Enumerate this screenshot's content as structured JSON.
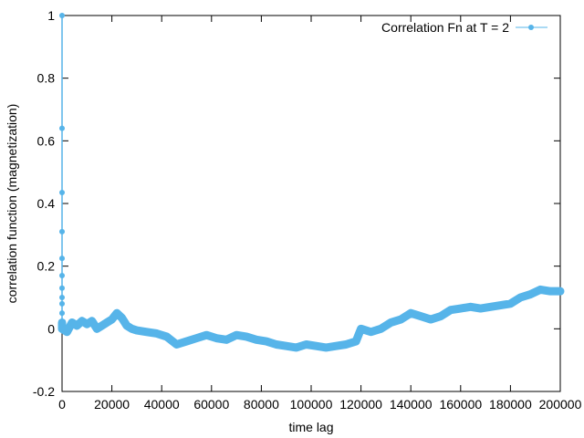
{
  "chart_data": {
    "type": "line",
    "xlabel": "time lag",
    "ylabel": "correlation function (magnetization)",
    "xlim": [
      0,
      200000
    ],
    "ylim": [
      -0.2,
      1
    ],
    "xticks": [
      0,
      20000,
      40000,
      60000,
      80000,
      100000,
      120000,
      140000,
      160000,
      180000,
      200000
    ],
    "yticks": [
      -0.2,
      0,
      0.2,
      0.4,
      0.6,
      0.8,
      1
    ],
    "ytick_labels": [
      "-0.2",
      "0",
      "0.2",
      "0.4",
      "0.6",
      "0.8",
      "1"
    ],
    "grid": false,
    "legend_position": "top-right",
    "series": [
      {
        "name": "Correlation Fn at T = 2",
        "color": "#56b4e9",
        "style": "linespoints",
        "initial_decay": {
          "x": [
            0,
            0,
            0,
            0,
            0,
            0,
            0,
            0,
            0,
            0,
            0
          ],
          "y": [
            1.0,
            0.64,
            0.435,
            0.31,
            0.225,
            0.17,
            0.13,
            0.1,
            0.08,
            0.05,
            0.02
          ]
        },
        "x": [
          0,
          2000,
          4000,
          6000,
          8000,
          10000,
          12000,
          14000,
          16000,
          18000,
          20000,
          22000,
          24000,
          26000,
          28000,
          30000,
          34000,
          38000,
          42000,
          46000,
          50000,
          54000,
          58000,
          62000,
          66000,
          70000,
          74000,
          78000,
          82000,
          86000,
          90000,
          94000,
          98000,
          102000,
          106000,
          110000,
          114000,
          118000,
          120000,
          124000,
          128000,
          132000,
          136000,
          140000,
          144000,
          148000,
          152000,
          156000,
          160000,
          164000,
          168000,
          172000,
          176000,
          180000,
          184000,
          188000,
          192000,
          196000,
          200000
        ],
        "y": [
          0.0,
          -0.01,
          0.02,
          0.01,
          0.025,
          0.015,
          0.025,
          0.0,
          0.01,
          0.02,
          0.03,
          0.05,
          0.035,
          0.01,
          0.0,
          -0.005,
          -0.01,
          -0.015,
          -0.025,
          -0.05,
          -0.04,
          -0.03,
          -0.02,
          -0.03,
          -0.035,
          -0.02,
          -0.025,
          -0.035,
          -0.04,
          -0.05,
          -0.055,
          -0.06,
          -0.05,
          -0.055,
          -0.06,
          -0.055,
          -0.05,
          -0.04,
          0.0,
          -0.01,
          0.0,
          0.02,
          0.03,
          0.05,
          0.04,
          0.03,
          0.04,
          0.06,
          0.065,
          0.07,
          0.065,
          0.07,
          0.075,
          0.08,
          0.1,
          0.11,
          0.125,
          0.12,
          0.12
        ]
      }
    ]
  }
}
